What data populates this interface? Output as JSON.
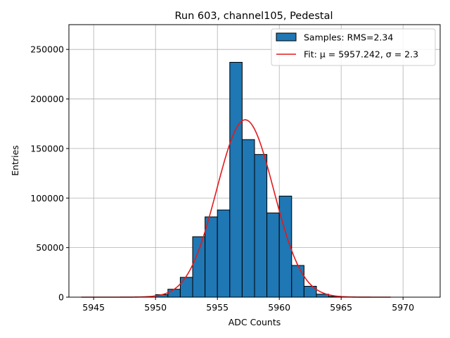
{
  "chart_data": {
    "type": "bar",
    "title": "Run 603, channel105, Pedestal",
    "xlabel": "ADC Counts",
    "ylabel": "Entries",
    "xlim": [
      5943,
      5973
    ],
    "ylim": [
      0,
      275000
    ],
    "xticks": [
      5945,
      5950,
      5955,
      5960,
      5965,
      5970
    ],
    "yticks": [
      0,
      50000,
      100000,
      150000,
      200000,
      250000
    ],
    "grid": true,
    "legend_position": "top-right",
    "bin_width": 1,
    "bins": [
      {
        "x": 5950.5,
        "value": 2500
      },
      {
        "x": 5951.5,
        "value": 8000
      },
      {
        "x": 5952.5,
        "value": 20000
      },
      {
        "x": 5953.5,
        "value": 61000
      },
      {
        "x": 5954.5,
        "value": 81000
      },
      {
        "x": 5955.5,
        "value": 88000
      },
      {
        "x": 5956.5,
        "value": 237000
      },
      {
        "x": 5957.5,
        "value": 159000
      },
      {
        "x": 5958.5,
        "value": 144000
      },
      {
        "x": 5959.5,
        "value": 85000
      },
      {
        "x": 5960.5,
        "value": 102000
      },
      {
        "x": 5961.5,
        "value": 32000
      },
      {
        "x": 5962.5,
        "value": 11000
      },
      {
        "x": 5963.5,
        "value": 3000
      },
      {
        "x": 5964.5,
        "value": 800
      }
    ],
    "histogram_series": {
      "name": "Samples: RMS=2.34",
      "color": "#1f77b4",
      "edge_color": "#000000"
    },
    "fit_series": {
      "name": "Fit: μ = 5957.242, σ = 2.3",
      "color": "#e31a1c",
      "mu": 5957.242,
      "sigma": 2.3,
      "amplitude": 179000,
      "x_range": [
        5944,
        5969
      ]
    }
  }
}
